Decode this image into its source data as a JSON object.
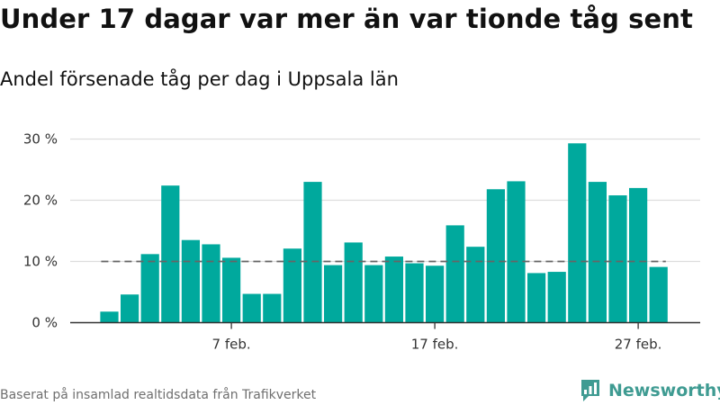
{
  "title": "Under 17 dagar var mer än var tionde tåg sent",
  "subtitle": "Andel försenade tåg per dag i Uppsala län",
  "source": "Baserat på insamlad realtidsdata från Trafikverket",
  "brand": {
    "name": "Newsworthy",
    "icon": "newsworthy-logo-icon"
  },
  "colors": {
    "bar": "#00a99d",
    "reference_line": "#666666",
    "grid": "#dddddd",
    "axis": "#333333"
  },
  "chart_data": {
    "type": "bar",
    "title": "Under 17 dagar var mer än var tionde tåg sent",
    "subtitle": "Andel försenade tåg per dag i Uppsala län",
    "xlabel": "",
    "ylabel": "",
    "x": [
      1,
      2,
      3,
      4,
      5,
      6,
      7,
      8,
      9,
      10,
      11,
      12,
      13,
      14,
      15,
      16,
      17,
      18,
      19,
      20,
      21,
      22,
      23,
      24,
      25,
      26,
      27,
      28
    ],
    "values": [
      1.8,
      4.6,
      11.2,
      22.4,
      13.5,
      12.8,
      10.6,
      4.7,
      4.7,
      12.1,
      23.0,
      9.4,
      13.1,
      9.4,
      10.8,
      9.7,
      9.3,
      15.9,
      12.4,
      21.8,
      23.1,
      8.1,
      8.3,
      29.3,
      23.0,
      20.8,
      22.0,
      9.1
    ],
    "unit": "%",
    "ylim": [
      0,
      30
    ],
    "yticks": [
      0,
      10,
      20,
      30
    ],
    "ytick_labels": [
      "0 %",
      "10 %",
      "20 %",
      "30 %"
    ],
    "xticks": [
      7,
      17,
      27
    ],
    "xtick_labels": [
      "7 feb.",
      "17 feb.",
      "27 feb."
    ],
    "reference_line": 10,
    "grid": true,
    "legend": "none"
  }
}
